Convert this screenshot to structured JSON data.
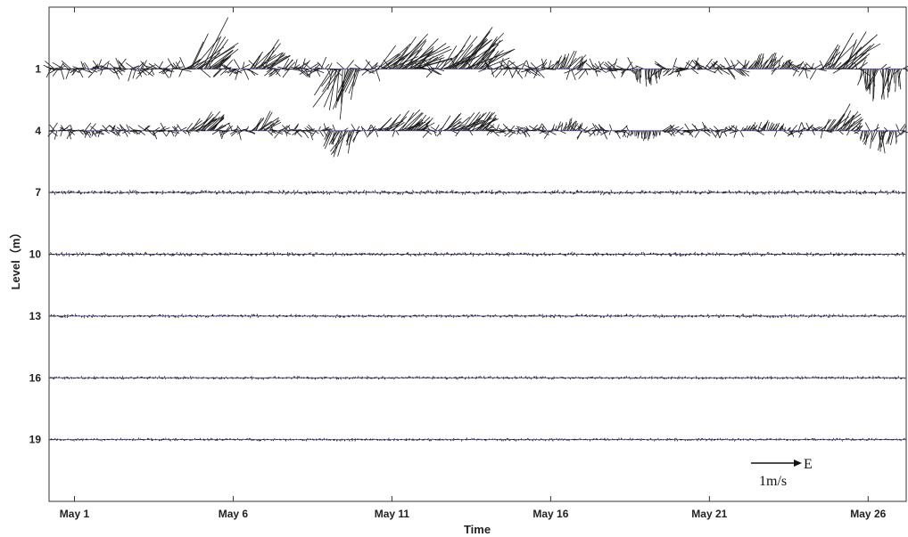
{
  "chart_data": {
    "type": "vector-stick",
    "title": "",
    "xlabel": "Time",
    "ylabel": "Level（m）",
    "x_range_days": [
      0.2,
      27.2
    ],
    "x_ticks": [
      {
        "day": 1,
        "label": "May 1"
      },
      {
        "day": 6,
        "label": "May 6"
      },
      {
        "day": 11,
        "label": "May 11"
      },
      {
        "day": 16,
        "label": "May 16"
      },
      {
        "day": 21,
        "label": "May 21"
      },
      {
        "day": 26,
        "label": "May 26"
      }
    ],
    "levels": [
      {
        "depth": 1,
        "label": "1",
        "amplitude": 1.0
      },
      {
        "depth": 4,
        "label": "4",
        "amplitude": 0.75
      },
      {
        "depth": 7,
        "label": "7",
        "amplitude": 0.22
      },
      {
        "depth": 10,
        "label": "10",
        "amplitude": 0.2
      },
      {
        "depth": 13,
        "label": "13",
        "amplitude": 0.18
      },
      {
        "depth": 16,
        "label": "16",
        "amplitude": 0.16
      },
      {
        "depth": 19,
        "label": "19",
        "amplitude": 0.15
      }
    ],
    "y_range_m": [
      -2,
      22
    ],
    "scale_vector": {
      "label": "1m/s",
      "direction_label": "E"
    },
    "baseline_color": "#6a6ad8",
    "stick_color": "#1a1a1a"
  }
}
